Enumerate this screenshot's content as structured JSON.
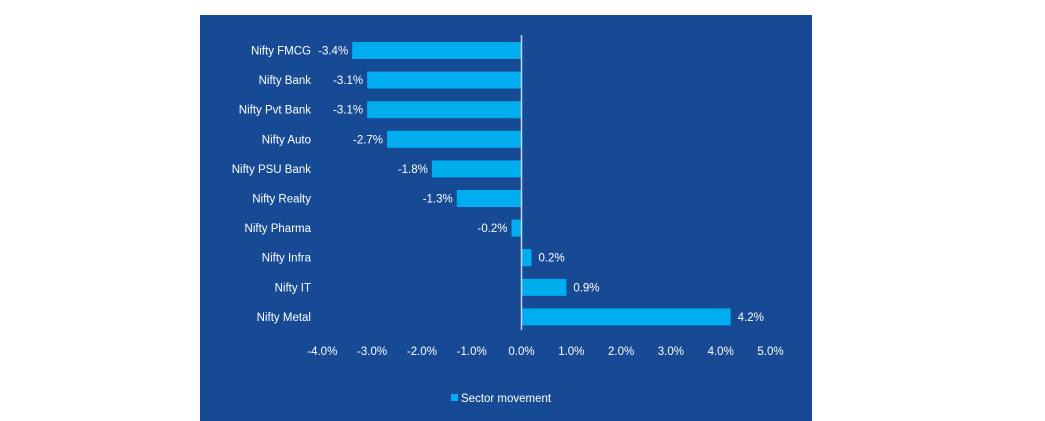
{
  "chart_data": {
    "type": "bar",
    "orientation": "horizontal",
    "title": "",
    "xlabel": "",
    "ylabel": "",
    "categories": [
      "Nifty FMCG",
      "Nifty Bank",
      "Nifty Pvt Bank",
      "Nifty Auto",
      "Nifty PSU Bank",
      "Nifty Realty",
      "Nifty Pharma",
      "Nifty Infra",
      "Nifty IT",
      "Nifty Metal"
    ],
    "series": [
      {
        "name": "Sector movement",
        "values": [
          -3.4,
          -3.1,
          -3.1,
          -2.7,
          -1.8,
          -1.3,
          -0.2,
          0.2,
          0.9,
          4.2
        ],
        "labels": [
          "-3.4%",
          "-3.1%",
          "-3.1%",
          "-2.7%",
          "-1.8%",
          "-1.3%",
          "-0.2%",
          "0.2%",
          "0.9%",
          "4.2%"
        ],
        "color": "#00aeef"
      }
    ],
    "xlim": [
      -4.0,
      5.0
    ],
    "xticks": [
      -4.0,
      -3.0,
      -2.0,
      -1.0,
      0.0,
      1.0,
      2.0,
      3.0,
      4.0,
      5.0
    ],
    "xtick_labels": [
      "-4.0%",
      "-3.0%",
      "-2.0%",
      "-1.0%",
      "0.0%",
      "1.0%",
      "2.0%",
      "3.0%",
      "4.0%",
      "5.0%"
    ],
    "grid": false,
    "legend": {
      "position": "bottom",
      "entries": [
        "Sector movement"
      ]
    },
    "background_color": "#164a95",
    "text_color": "#ffffff",
    "axis_color": "#c8d4e8"
  }
}
